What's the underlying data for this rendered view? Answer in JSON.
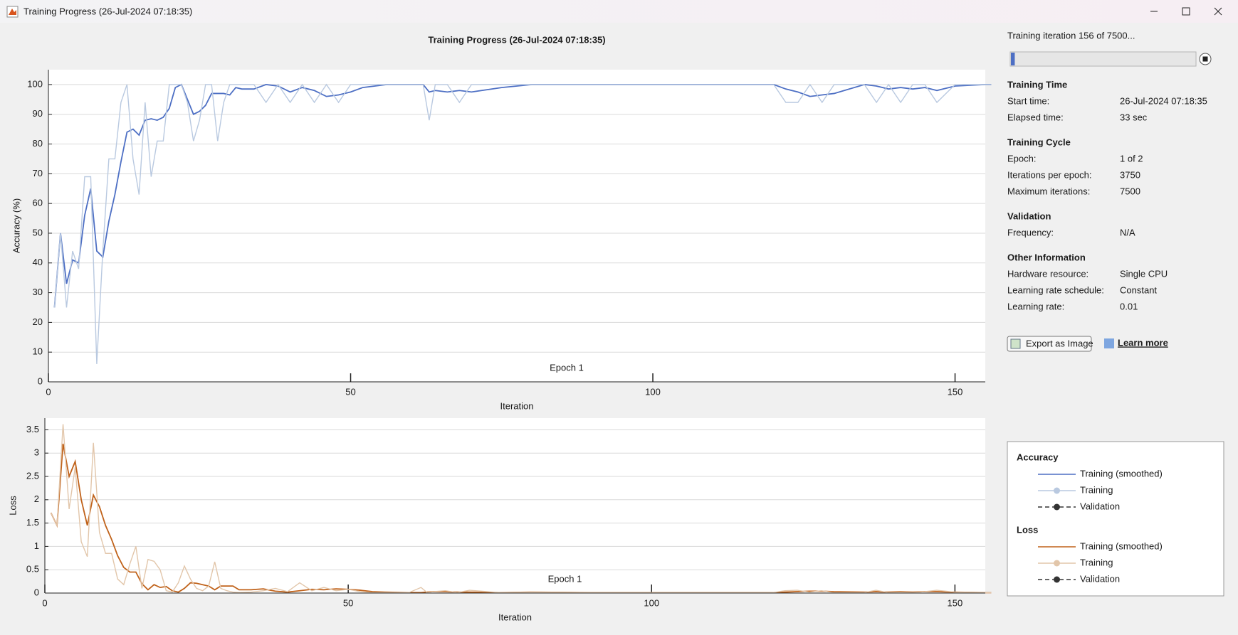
{
  "window": {
    "title": "Training Progress (26-Jul-2024 07:18:35)"
  },
  "chart_data": [
    {
      "type": "line",
      "title": "Training Progress (26-Jul-2024 07:18:35)",
      "xlabel": "Iteration",
      "ylabel": "Accuracy (%)",
      "annotation": "Epoch 1",
      "legend_title": "Accuracy",
      "xlim": [
        0,
        155
      ],
      "ylim": [
        0,
        105
      ],
      "xticks": [
        0,
        50,
        100,
        150
      ],
      "yticks": [
        0,
        10,
        20,
        30,
        40,
        50,
        60,
        70,
        80,
        90,
        100
      ],
      "grid": true,
      "x": [
        1,
        2,
        3,
        4,
        5,
        6,
        7,
        8,
        9,
        10,
        11,
        12,
        13,
        14,
        15,
        16,
        17,
        18,
        19,
        20,
        21,
        22,
        23,
        24,
        25,
        26,
        27,
        28,
        29,
        30,
        31,
        32,
        34,
        36,
        38,
        40,
        42,
        44,
        46,
        48,
        50,
        52,
        54,
        56,
        60,
        62,
        63,
        64,
        66,
        68,
        70,
        75,
        80,
        90,
        100,
        110,
        120,
        122,
        124,
        126,
        128,
        130,
        135,
        137,
        139,
        141,
        143,
        145,
        147,
        150,
        155,
        156
      ],
      "series": [
        {
          "name": "Training (smoothed)",
          "color": "#4d6fc4",
          "values": [
            25,
            50,
            33,
            41,
            40,
            56,
            65,
            44,
            42,
            54,
            63,
            74,
            84,
            85,
            83,
            88,
            88.5,
            88,
            89,
            92,
            99,
            100,
            95,
            90,
            91,
            93,
            97,
            97,
            97,
            96.5,
            99,
            98.5,
            98.5,
            100,
            99.5,
            97.5,
            99,
            98,
            96,
            96.5,
            97.5,
            99,
            99.5,
            100,
            100,
            100,
            97.5,
            98,
            97.5,
            98,
            97.5,
            99,
            100,
            100,
            100,
            100,
            100,
            98.5,
            97.5,
            96,
            96.5,
            97,
            100,
            99.5,
            98.5,
            99,
            98.5,
            99,
            98,
            99.5,
            100,
            100
          ]
        },
        {
          "name": "Training",
          "color": "#b9c9e0",
          "values": [
            25,
            50,
            25,
            44,
            38,
            69,
            69,
            6,
            44,
            75,
            75,
            94,
            100,
            75,
            63,
            94,
            69,
            81,
            81,
            100,
            100,
            100,
            94,
            81,
            88,
            100,
            100,
            81,
            94,
            100,
            100,
            100,
            100,
            94,
            100,
            94,
            100,
            94,
            100,
            94,
            100,
            100,
            100,
            100,
            100,
            100,
            88,
            100,
            100,
            94,
            100,
            100,
            100,
            100,
            100,
            100,
            100,
            94,
            94,
            100,
            94,
            100,
            100,
            94,
            100,
            94,
            100,
            100,
            94,
            100,
            100,
            100
          ]
        }
      ],
      "extra_legend": [
        {
          "name": "Validation",
          "color": "#333333"
        }
      ]
    },
    {
      "type": "line",
      "xlabel": "Iteration",
      "ylabel": "Loss",
      "annotation": "Epoch 1",
      "legend_title": "Loss",
      "xlim": [
        0,
        155
      ],
      "ylim": [
        0,
        3.75
      ],
      "xticks": [
        0,
        50,
        100,
        150
      ],
      "yticks": [
        0,
        0.5,
        1,
        1.5,
        2,
        2.5,
        3,
        3.5
      ],
      "grid": true,
      "x": [
        1,
        2,
        3,
        4,
        5,
        6,
        7,
        8,
        9,
        10,
        11,
        12,
        13,
        14,
        15,
        16,
        17,
        18,
        19,
        20,
        21,
        22,
        23,
        24,
        25,
        26,
        27,
        28,
        29,
        30,
        31,
        32,
        34,
        36,
        38,
        40,
        42,
        44,
        46,
        48,
        50,
        52,
        54,
        56,
        60,
        62,
        63,
        64,
        66,
        68,
        70,
        75,
        80,
        90,
        100,
        110,
        120,
        122,
        124,
        126,
        128,
        130,
        135,
        137,
        139,
        141,
        143,
        145,
        147,
        150,
        155,
        156
      ],
      "series": [
        {
          "name": "Training (smoothed)",
          "color": "#c0621a",
          "values": [
            1.72,
            1.45,
            3.2,
            2.5,
            2.82,
            2.0,
            1.45,
            2.1,
            1.85,
            1.45,
            1.15,
            0.8,
            0.55,
            0.45,
            0.45,
            0.2,
            0.07,
            0.18,
            0.12,
            0.14,
            0.05,
            0.02,
            0.1,
            0.22,
            0.21,
            0.18,
            0.15,
            0.07,
            0.15,
            0.15,
            0.15,
            0.07,
            0.07,
            0.09,
            0.04,
            0.02,
            0.05,
            0.08,
            0.07,
            0.09,
            0.08,
            0.06,
            0.03,
            0.02,
            0.01,
            0.01,
            0.02,
            0.03,
            0.03,
            0.02,
            0.02,
            0.01,
            0.02,
            0.01,
            0.01,
            0.01,
            0.01,
            0.02,
            0.03,
            0.04,
            0.04,
            0.03,
            0.02,
            0.03,
            0.02,
            0.03,
            0.02,
            0.03,
            0.03,
            0.02,
            0.01,
            0.01
          ]
        },
        {
          "name": "Training",
          "color": "#e2c6aa",
          "values": [
            1.72,
            1.45,
            3.62,
            1.8,
            2.7,
            1.1,
            0.78,
            3.22,
            1.3,
            0.85,
            0.85,
            0.3,
            0.18,
            0.62,
            1.0,
            0.1,
            0.72,
            0.68,
            0.5,
            0.05,
            0.02,
            0.22,
            0.58,
            0.3,
            0.1,
            0.05,
            0.15,
            0.67,
            0.1,
            0.05,
            0.02,
            0.01,
            0.02,
            0.05,
            0.1,
            0.03,
            0.22,
            0.05,
            0.12,
            0.05,
            0.08,
            0.03,
            0.01,
            0.01,
            0.01,
            0.12,
            0.01,
            0.03,
            0.05,
            0.01,
            0.06,
            0.01,
            0.02,
            0.01,
            0.01,
            0.01,
            0.01,
            0.05,
            0.06,
            0.02,
            0.05,
            0.01,
            0.01,
            0.06,
            0.01,
            0.02,
            0.01,
            0.03,
            0.06,
            0.02,
            0.01,
            0.01
          ]
        }
      ],
      "extra_legend": [
        {
          "name": "Validation",
          "color": "#333333"
        }
      ]
    }
  ],
  "panel": {
    "status": "Training iteration 156 of 7500...",
    "progress": {
      "value": 156,
      "max": 7500
    },
    "sections": [
      {
        "title": "Training Time",
        "rows": [
          [
            "Start time:",
            "26-Jul-2024 07:18:35"
          ],
          [
            "Elapsed time:",
            "33 sec"
          ]
        ]
      },
      {
        "title": "Training Cycle",
        "rows": [
          [
            "Epoch:",
            "1 of 2"
          ],
          [
            "Iterations per epoch:",
            "3750"
          ],
          [
            "Maximum iterations:",
            "7500"
          ]
        ]
      },
      {
        "title": "Validation",
        "rows": [
          [
            "Frequency:",
            "N/A"
          ]
        ]
      },
      {
        "title": "Other Information",
        "rows": [
          [
            "Hardware resource:",
            "Single CPU"
          ],
          [
            "Learning rate schedule:",
            "Constant"
          ],
          [
            "Learning rate:",
            "0.01"
          ]
        ]
      }
    ],
    "export_button": "Export as Image",
    "learn_more": "Learn more"
  }
}
